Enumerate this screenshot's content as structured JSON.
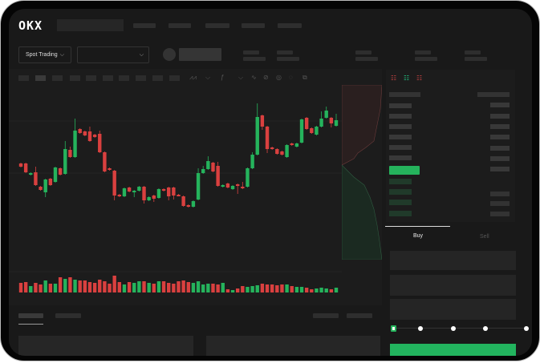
{
  "header": {
    "logo": "OKX"
  },
  "market_bar": {
    "mode_button": "Spot Trading",
    "chevron": "⌵"
  },
  "trade_form": {
    "tabs": [
      {
        "label": "Buy",
        "active": true
      },
      {
        "label": "Sell",
        "active": false
      }
    ],
    "leverage_steps": 5,
    "selected_step": 0
  },
  "colors": {
    "up": "#25b35c",
    "down": "#d9403f",
    "background": "#191919",
    "panel": "#1c1c1c",
    "accent_button": "#22b45e"
  },
  "chart_data": {
    "type": "candlestick",
    "candles": [
      [
        62,
        62,
        58,
        58
      ],
      [
        62,
        62,
        51,
        51
      ],
      [
        48,
        50,
        48,
        50
      ],
      [
        51,
        57,
        35,
        35
      ],
      [
        33,
        33,
        29,
        29
      ],
      [
        26,
        42,
        21,
        42
      ],
      [
        43,
        43,
        35,
        35
      ],
      [
        39,
        57,
        39,
        57
      ],
      [
        56,
        56,
        48,
        48
      ],
      [
        49,
        89,
        49,
        80
      ],
      [
        79,
        82,
        70,
        70
      ],
      [
        70,
        117,
        70,
        103
      ],
      [
        105,
        105,
        100,
        100
      ],
      [
        102,
        102,
        97,
        97
      ],
      [
        102,
        107,
        90,
        90
      ],
      [
        98,
        98,
        95,
        95
      ],
      [
        99,
        102,
        76,
        76
      ],
      [
        76,
        76,
        52,
        52
      ],
      [
        56,
        56,
        54,
        54
      ],
      [
        53,
        53,
        17,
        22
      ],
      [
        23,
        23,
        21,
        21
      ],
      [
        21,
        31,
        21,
        31
      ],
      [
        32,
        32,
        27,
        27
      ],
      [
        26,
        28,
        21,
        28
      ],
      [
        28,
        33,
        28,
        33
      ],
      [
        33,
        33,
        13,
        16
      ],
      [
        16,
        20,
        16,
        20
      ],
      [
        22,
        22,
        15,
        18
      ],
      [
        19,
        30,
        19,
        30
      ],
      [
        30,
        30,
        28,
        28
      ],
      [
        32,
        32,
        17,
        21
      ],
      [
        32,
        32,
        18,
        22
      ],
      [
        23,
        23,
        22,
        22
      ],
      [
        21,
        21,
        9,
        9
      ],
      [
        10,
        10,
        8,
        8
      ],
      [
        8,
        15,
        8,
        15
      ],
      [
        17,
        55,
        17,
        50
      ],
      [
        50,
        58,
        50,
        55
      ],
      [
        55,
        70,
        55,
        65
      ],
      [
        63,
        63,
        52,
        52
      ],
      [
        59,
        63,
        34,
        34
      ],
      [
        33,
        35,
        33,
        35
      ],
      [
        37,
        37,
        32,
        32
      ],
      [
        30,
        34,
        30,
        34
      ],
      [
        36,
        36,
        25,
        34
      ],
      [
        33,
        38,
        31,
        31
      ],
      [
        33,
        56,
        33,
        56
      ],
      [
        56,
        75,
        56,
        73
      ],
      [
        73,
        136,
        73,
        120
      ],
      [
        122,
        122,
        105,
        108
      ],
      [
        108,
        108,
        76,
        80
      ],
      [
        82,
        82,
        80,
        80
      ],
      [
        80,
        80,
        74,
        74
      ],
      [
        77,
        77,
        73,
        73
      ],
      [
        70,
        85,
        70,
        85
      ],
      [
        87,
        87,
        85,
        85
      ],
      [
        83,
        87,
        83,
        87
      ],
      [
        88,
        117,
        88,
        117
      ],
      [
        119,
        119,
        105,
        105
      ],
      [
        106,
        106,
        100,
        100
      ],
      [
        98,
        108,
        98,
        108
      ],
      [
        108,
        126,
        108,
        118
      ],
      [
        119,
        132,
        119,
        128
      ],
      [
        119,
        119,
        108,
        112
      ],
      [
        109,
        123,
        109,
        116
      ]
    ],
    "volume": [
      12,
      13,
      8,
      12,
      10,
      15,
      11,
      11,
      19,
      17,
      19,
      16,
      15,
      15,
      13,
      12,
      16,
      14,
      11,
      21,
      13,
      10,
      13,
      12,
      14,
      14,
      12,
      11,
      14,
      14,
      12,
      11,
      14,
      15,
      13,
      12,
      14,
      10,
      11,
      11,
      10,
      12,
      4,
      3,
      5,
      8,
      7,
      8,
      9,
      11,
      10,
      10,
      9,
      10,
      10,
      8,
      7,
      7,
      6,
      4,
      5,
      6,
      5,
      4,
      6
    ]
  }
}
